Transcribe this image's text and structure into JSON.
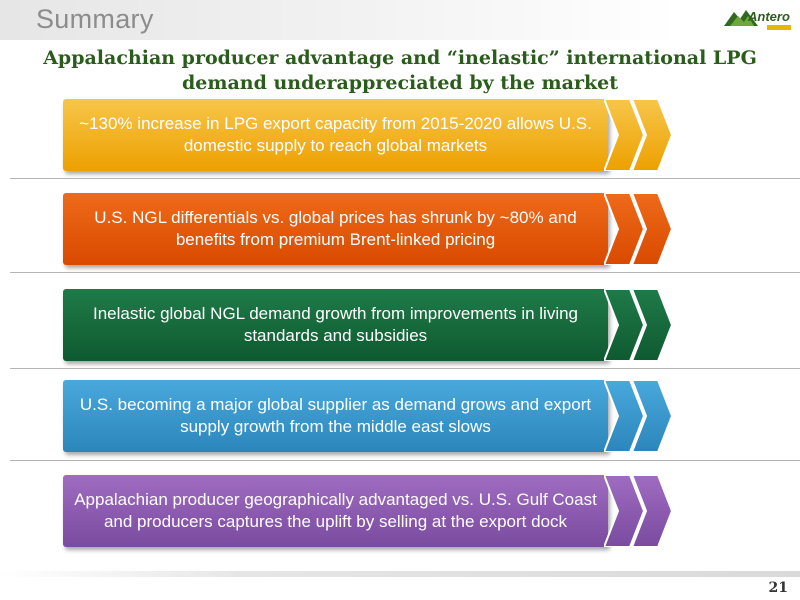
{
  "header": {
    "title": "Summary",
    "logo_text": "Antero"
  },
  "subtitle": {
    "line1": "Appalachian producer advantage and “inelastic” international LPG",
    "line2": "demand underappreciated by the market"
  },
  "boxes": [
    {
      "text": "~130% increase in LPG export capacity from 2015-2020 allows U.S. domestic supply to reach global markets",
      "color_top": "#f7c64a",
      "color_bottom": "#eda000"
    },
    {
      "text": "U.S. NGL differentials vs. global prices has shrunk by ~80% and benefits from premium Brent-linked pricing",
      "color_top": "#ef6a1a",
      "color_bottom": "#d94a00"
    },
    {
      "text": "Inelastic global NGL demand growth from improvements in living standards and subsidies",
      "color_top": "#1f7a48",
      "color_bottom": "#0f5a31"
    },
    {
      "text": "U.S. becoming a major global supplier as demand grows and export supply growth from the middle east slows",
      "color_top": "#49a8dc",
      "color_bottom": "#2b86bb"
    },
    {
      "text": "Appalachian producer geographically advantaged vs. U.S. Gulf Coast and producers captures the uplift by selling at the export dock",
      "color_top": "#9f6cc0",
      "color_bottom": "#7a4ba0"
    }
  ],
  "footer": {
    "page_number": "21"
  }
}
